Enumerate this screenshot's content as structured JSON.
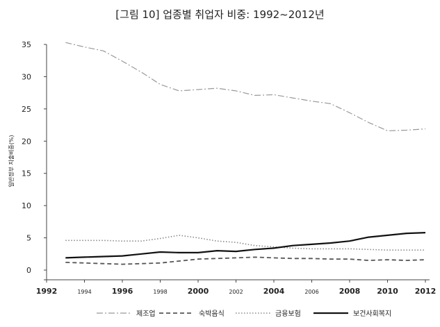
{
  "chart_data": {
    "type": "line",
    "title": "[그림 10] 업종별 취업자 비중: 1992~2012년",
    "ylabel": "일반정부 지출비중(%)",
    "xlabel": "",
    "xlim": [
      1992,
      2012
    ],
    "ylim": [
      0,
      35
    ],
    "yticks": [
      0,
      5,
      10,
      15,
      20,
      25,
      30,
      35
    ],
    "xticks": [
      {
        "value": 1992,
        "label": "1992",
        "major": true
      },
      {
        "value": 1994,
        "label": "1994",
        "major": false
      },
      {
        "value": 1996,
        "label": "1996",
        "major": true
      },
      {
        "value": 1998,
        "label": "1998",
        "major": false
      },
      {
        "value": 2000,
        "label": "2000",
        "major": true
      },
      {
        "value": 2002,
        "label": "2002",
        "major": false
      },
      {
        "value": 2004,
        "label": "2004",
        "major": true
      },
      {
        "value": 2006,
        "label": "2006",
        "major": false
      },
      {
        "value": 2008,
        "label": "2008",
        "major": true
      },
      {
        "value": 2010,
        "label": "2010",
        "major": true
      },
      {
        "value": 2012,
        "label": "2012",
        "major": true
      }
    ],
    "x": [
      1993,
      1994,
      1995,
      1996,
      1997,
      1998,
      1999,
      2000,
      2001,
      2002,
      2003,
      2004,
      2005,
      2006,
      2007,
      2008,
      2009,
      2010,
      2011,
      2012
    ],
    "series": [
      {
        "name": "제조업",
        "style": "dashdot",
        "color": "#999999",
        "values": [
          35.3,
          34.6,
          34.0,
          32.4,
          30.7,
          28.8,
          27.8,
          28.0,
          28.2,
          27.8,
          27.1,
          27.2,
          26.7,
          26.2,
          25.8,
          24.4,
          22.9,
          21.6,
          21.7,
          21.9
        ]
      },
      {
        "name": "숙박음식",
        "style": "dashed",
        "color": "#555555",
        "values": [
          1.2,
          1.1,
          1.0,
          0.9,
          1.0,
          1.1,
          1.4,
          1.7,
          1.8,
          1.9,
          2.0,
          1.9,
          1.8,
          1.8,
          1.7,
          1.7,
          1.5,
          1.6,
          1.5,
          1.6
        ]
      },
      {
        "name": "금융보험",
        "style": "dotted",
        "color": "#888888",
        "values": [
          4.6,
          4.6,
          4.6,
          4.5,
          4.5,
          4.9,
          5.4,
          5.0,
          4.5,
          4.3,
          3.8,
          3.6,
          3.4,
          3.3,
          3.3,
          3.3,
          3.2,
          3.1,
          3.1,
          3.1
        ]
      },
      {
        "name": "보건사회복지",
        "style": "solid",
        "color": "#111111",
        "values": [
          1.9,
          2.0,
          2.1,
          2.2,
          2.5,
          2.8,
          2.7,
          2.7,
          3.0,
          2.9,
          3.2,
          3.4,
          3.8,
          4.0,
          4.2,
          4.5,
          5.1,
          5.4,
          5.7,
          5.8
        ]
      }
    ],
    "legend_position": "bottom",
    "grid": false
  }
}
